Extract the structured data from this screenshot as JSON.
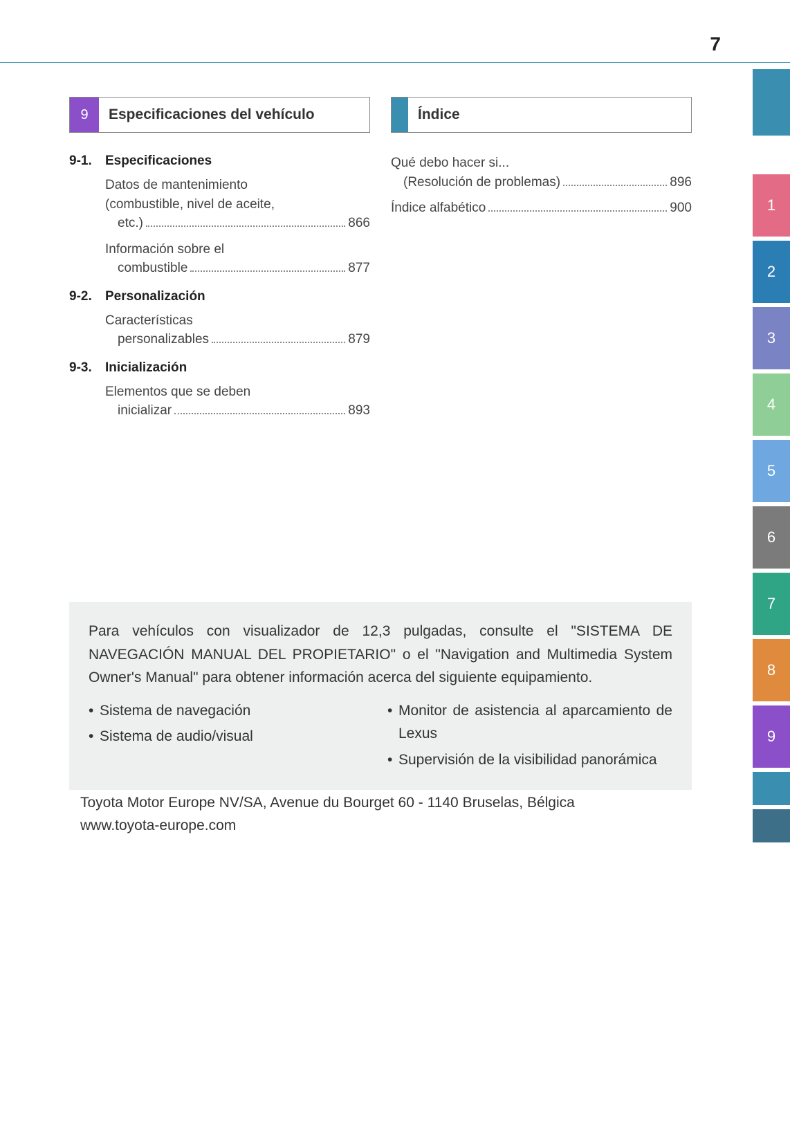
{
  "page_number": "7",
  "left_section": {
    "badge": "9",
    "title": "Especificaciones del vehículo",
    "subsections": [
      {
        "num": "9-1.",
        "title": "Especificaciones",
        "entries": [
          {
            "line1": "Datos de mantenimiento",
            "line2": "(combustible, nivel de aceite,",
            "line3_pre": "etc.)",
            "page": "866"
          },
          {
            "line1": "Información sobre el",
            "line2_pre": "combustible",
            "page": "877"
          }
        ]
      },
      {
        "num": "9-2.",
        "title": "Personalización",
        "entries": [
          {
            "line1": "Características",
            "line2_pre": "personalizables",
            "page": "879"
          }
        ]
      },
      {
        "num": "9-3.",
        "title": "Inicialización",
        "entries": [
          {
            "line1": "Elementos que se deben",
            "line2_pre": "inicializar",
            "page": "893"
          }
        ]
      }
    ]
  },
  "right_section": {
    "title": "Índice",
    "entries": [
      {
        "line1": "Qué debo hacer si...",
        "line2_pre": "(Resolución de problemas)",
        "page": "896"
      },
      {
        "line1_pre": "Índice alfabético",
        "page": "900"
      }
    ]
  },
  "note": {
    "body": "Para vehículos con visualizador de 12,3 pulgadas, consulte el \"SISTEMA DE NAVEGACIÓN MANUAL DEL PROPIETARIO\" o el \"Navigation and Multimedia System Owner's Manual\" para obtener información acerca del siguiente equipamiento.",
    "col1": [
      "Sistema de navegación",
      "Sistema de audio/visual"
    ],
    "col2": [
      "Monitor de asistencia al aparcamiento de Lexus",
      "Supervisión de la visibilidad panorámica"
    ]
  },
  "footer": {
    "line1": "Toyota Motor Europe NV/SA, Avenue du Bourget 60 - 1140 Bruselas, Bélgica",
    "line2": "www.toyota-europe.com"
  },
  "tabs": [
    "1",
    "2",
    "3",
    "4",
    "5",
    "6",
    "7",
    "8",
    "9"
  ],
  "colors": {
    "rule": "#3a8fb0",
    "badge9": "#8a4fc9",
    "tab_top": "#3a8fb0",
    "tab1": "#e46b85",
    "tab2": "#2b7eb3",
    "tab3": "#7a84c4",
    "tab4": "#8fce97",
    "tab5": "#6fa8e0",
    "tab6": "#7b7b7b",
    "tab7": "#2fa585",
    "tab8": "#e08a3d",
    "tab9": "#8a4fc9",
    "tab_a": "#3a8fb0",
    "tab_b": "#3d7088",
    "note_bg": "#eeefef"
  }
}
